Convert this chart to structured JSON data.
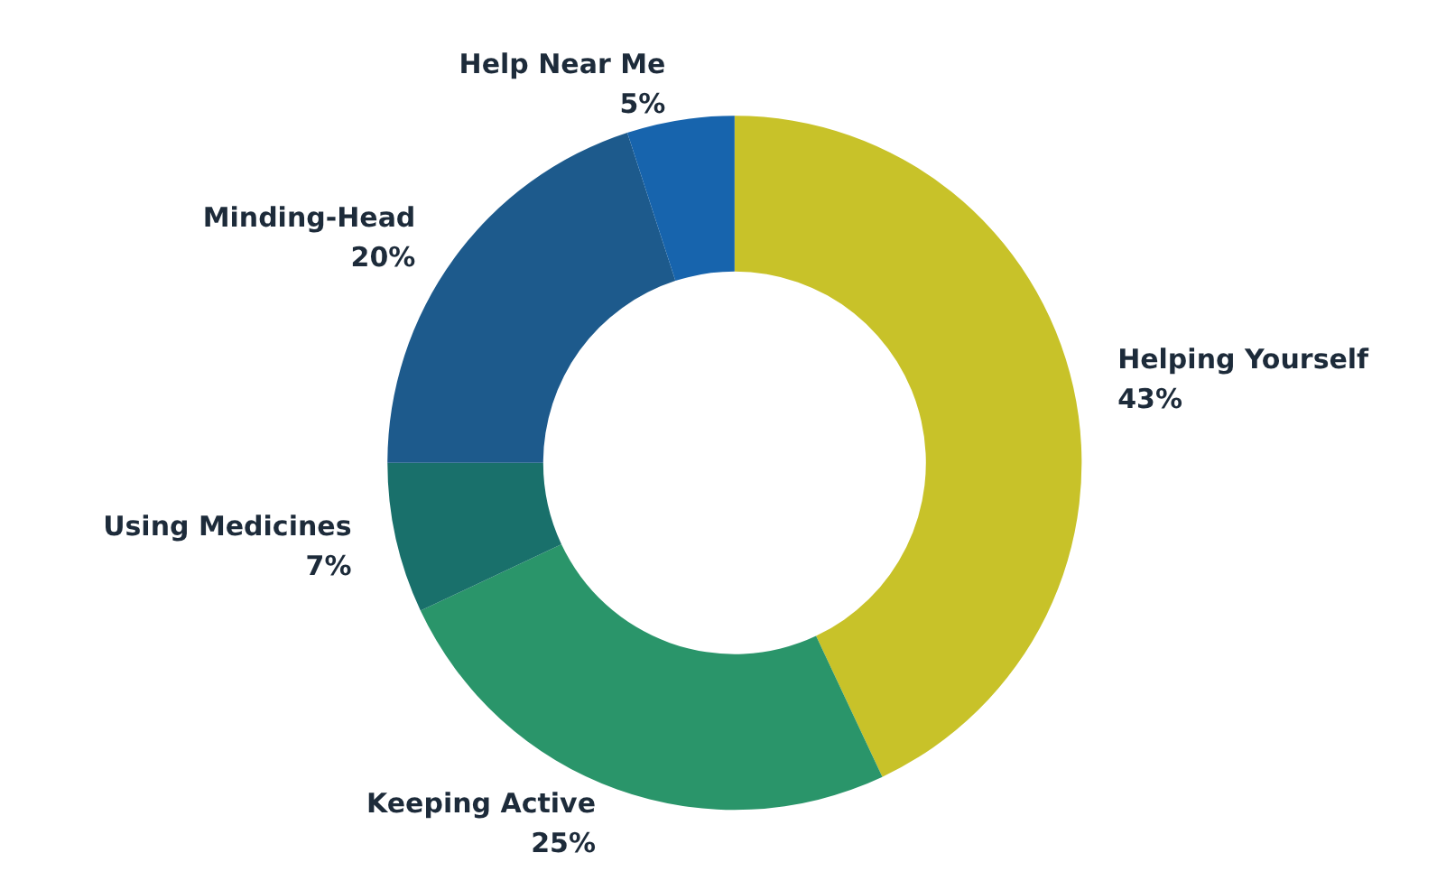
{
  "chart_data": {
    "type": "donut",
    "categories": [
      "Helping Yourself",
      "Keeping Active",
      "Using Medicines",
      "Minding-Head",
      "Help Near Me"
    ],
    "values": [
      43,
      25,
      7,
      20,
      5
    ],
    "value_labels": [
      "43%",
      "25%",
      "7%",
      "20%",
      "5%"
    ],
    "colors": [
      "#c8c229",
      "#2a956a",
      "#19706b",
      "#1d5a8c",
      "#1764ad"
    ],
    "legend": false
  }
}
